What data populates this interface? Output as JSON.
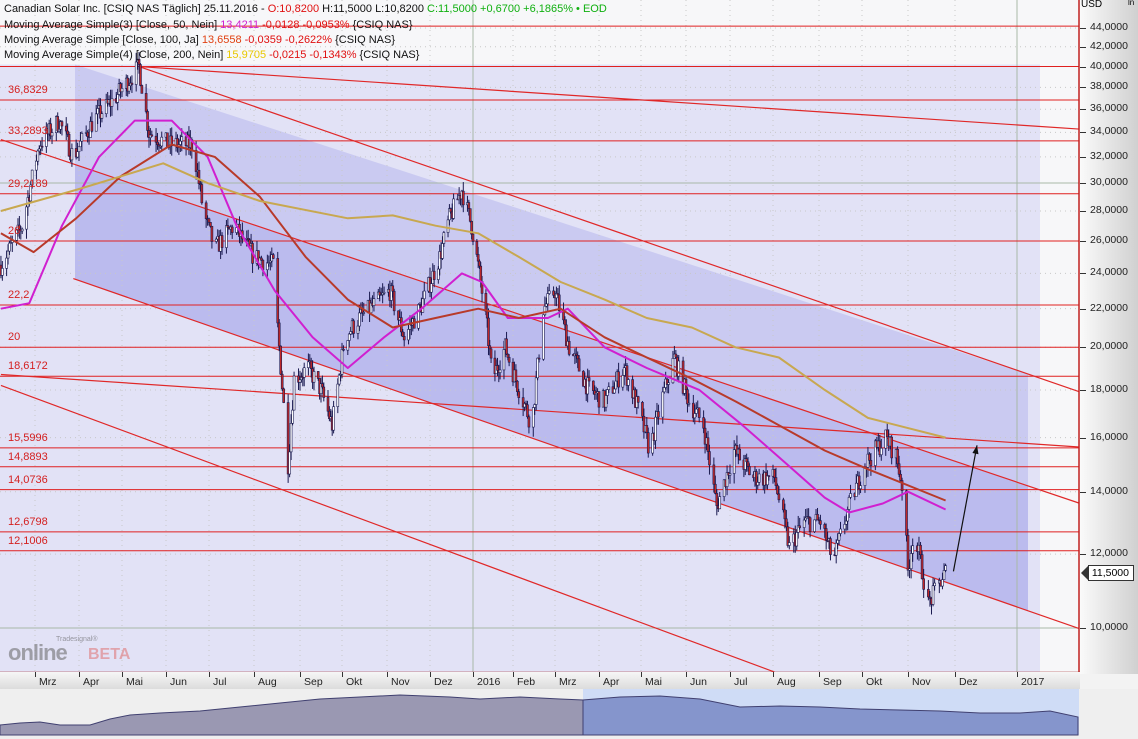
{
  "header": {
    "line1": {
      "name": "Canadian Solar Inc. [CSIQ NAS Täglich] 25.11.2016 -",
      "open": "O:10,8200",
      "hl": "H:11,5000 L:10,8200",
      "close": "C:11,5000 +0,6700 +6,1865% • EOD"
    },
    "line2": {
      "name": "Moving Average Simple(3) [Close, 50, Nein]",
      "value": "13,4211",
      "change": "-0,0128 -0,0953%",
      "suffix": "{CSIQ NAS}"
    },
    "line3": {
      "name": "Moving Average Simple [Close, 100, Ja]",
      "value": "13,6558",
      "change": "-0,0359 -0,2622%",
      "suffix": "{CSIQ NAS}"
    },
    "line4": {
      "name": "Moving Average Simple(4) [Close, 200, Nein]",
      "value": "15,9705",
      "change": "-0,0215 -0,1343%",
      "suffix": "{CSIQ NAS}"
    }
  },
  "colors": {
    "ma50": "#d020d0",
    "ma100": "#b83a2a",
    "ma200": "#c8a850",
    "levels": "#e02020",
    "header_open": "#e01010",
    "header_close": "#10b010",
    "ma200_value": "#e8c800"
  },
  "axis": {
    "currency": "USD",
    "scale_label": "ln",
    "last_price": "11,5000"
  },
  "logo": {
    "small": "Tradesignal®",
    "big": "online",
    "beta": "BETA"
  },
  "chart_data": {
    "type": "candlestick",
    "title": "Canadian Solar Inc. [CSIQ NAS Täglich]",
    "y_scale": "log",
    "ylim": [
      8.9,
      45
    ],
    "y_ticks": [
      "44,0000",
      "42,0000",
      "40,0000",
      "38,0000",
      "36,0000",
      "34,0000",
      "32,0000",
      "30,0000",
      "28,0000",
      "26,0000",
      "24,0000",
      "22,0000",
      "20,0000",
      "18,0000",
      "16,0000",
      "14,0000",
      "12,0000",
      "10,0000"
    ],
    "x_ticks": [
      {
        "date": "2015-03-01",
        "label": "Mrz"
      },
      {
        "date": "2015-04-01",
        "label": "Apr"
      },
      {
        "date": "2015-05-01",
        "label": "Mai"
      },
      {
        "date": "2015-06-01",
        "label": "Jun"
      },
      {
        "date": "2015-07-01",
        "label": "Jul"
      },
      {
        "date": "2015-08-01",
        "label": "Aug"
      },
      {
        "date": "2015-09-01",
        "label": "Sep"
      },
      {
        "date": "2015-10-01",
        "label": "Okt"
      },
      {
        "date": "2015-11-01",
        "label": "Nov"
      },
      {
        "date": "2015-12-01",
        "label": "Dez"
      },
      {
        "date": "2016-01-01",
        "label": "2016"
      },
      {
        "date": "2016-02-01",
        "label": "Feb"
      },
      {
        "date": "2016-03-01",
        "label": "Mrz"
      },
      {
        "date": "2016-04-01",
        "label": "Apr"
      },
      {
        "date": "2016-05-01",
        "label": "Mai"
      },
      {
        "date": "2016-06-01",
        "label": "Jun"
      },
      {
        "date": "2016-07-01",
        "label": "Jul"
      },
      {
        "date": "2016-08-01",
        "label": "Aug"
      },
      {
        "date": "2016-09-01",
        "label": "Sep"
      },
      {
        "date": "2016-10-01",
        "label": "Okt"
      },
      {
        "date": "2016-11-01",
        "label": "Nov"
      },
      {
        "date": "2016-12-01",
        "label": "Dez"
      },
      {
        "date": "2017-01-01",
        "label": "2017"
      }
    ],
    "price_path": [
      [
        "2015-02-05",
        24.5
      ],
      [
        "2015-02-20",
        27
      ],
      [
        "2015-03-04",
        33
      ],
      [
        "2015-03-18",
        35
      ],
      [
        "2015-03-28",
        32
      ],
      [
        "2015-04-11",
        35
      ],
      [
        "2015-04-26",
        37
      ],
      [
        "2015-05-13",
        40
      ],
      [
        "2015-05-20",
        34
      ],
      [
        "2015-06-03",
        33
      ],
      [
        "2015-06-20",
        33
      ],
      [
        "2015-06-27",
        28
      ],
      [
        "2015-07-05",
        25.5
      ],
      [
        "2015-07-18",
        27
      ],
      [
        "2015-08-01",
        25
      ],
      [
        "2015-08-15",
        24.5
      ],
      [
        "2015-08-17",
        21
      ],
      [
        "2015-08-24",
        15
      ],
      [
        "2015-08-28",
        18.5
      ],
      [
        "2015-09-07",
        19
      ],
      [
        "2015-09-16",
        18
      ],
      [
        "2015-09-24",
        16.5
      ],
      [
        "2015-10-03",
        20.5
      ],
      [
        "2015-10-13",
        21.5
      ],
      [
        "2015-11-03",
        23
      ],
      [
        "2015-11-13",
        20.5
      ],
      [
        "2015-11-24",
        22
      ],
      [
        "2015-12-08",
        25
      ],
      [
        "2015-12-15",
        27.5
      ],
      [
        "2015-12-24",
        29.5
      ],
      [
        "2015-12-31",
        27
      ],
      [
        "2016-01-06",
        24
      ],
      [
        "2016-01-12",
        21
      ],
      [
        "2016-01-16",
        18.5
      ],
      [
        "2016-01-26",
        20
      ],
      [
        "2016-02-14",
        16.5
      ],
      [
        "2016-02-22",
        22
      ],
      [
        "2016-03-01",
        23
      ],
      [
        "2016-03-11",
        20
      ],
      [
        "2016-03-25",
        18
      ],
      [
        "2016-04-05",
        17.5
      ],
      [
        "2016-04-19",
        19
      ],
      [
        "2016-04-30",
        17
      ],
      [
        "2016-05-07",
        15.5
      ],
      [
        "2016-05-15",
        17.5
      ],
      [
        "2016-05-24",
        19.5
      ],
      [
        "2016-06-03",
        17.5
      ],
      [
        "2016-06-13",
        16.5
      ],
      [
        "2016-06-22",
        13.5
      ],
      [
        "2016-07-04",
        15.5
      ],
      [
        "2016-07-18",
        14.5
      ],
      [
        "2016-08-02",
        14.5
      ],
      [
        "2016-08-12",
        12.2
      ],
      [
        "2016-08-22",
        13
      ],
      [
        "2016-09-02",
        13
      ],
      [
        "2016-09-11",
        11.8
      ],
      [
        "2016-09-22",
        13.5
      ],
      [
        "2016-10-03",
        15
      ],
      [
        "2016-10-17",
        16
      ],
      [
        "2016-10-24",
        15.3
      ],
      [
        "2016-10-29",
        14
      ],
      [
        "2016-11-01",
        11.5
      ],
      [
        "2016-11-04",
        12.5
      ],
      [
        "2016-11-08",
        12
      ],
      [
        "2016-11-14",
        10.6
      ],
      [
        "2016-11-25",
        11.5
      ]
    ],
    "last_bar": {
      "date": "25.11.2016",
      "open": 10.82,
      "high": 11.5,
      "low": 10.82,
      "close": 11.5
    },
    "series": [
      {
        "name": "Moving Average Simple(3) [Close, 50, Nein]",
        "color": "#d020d0",
        "points": [
          [
            "2015-02-05",
            22
          ],
          [
            "2015-02-25",
            22.3
          ],
          [
            "2015-03-20",
            27
          ],
          [
            "2015-04-15",
            32
          ],
          [
            "2015-05-10",
            35
          ],
          [
            "2015-06-05",
            35
          ],
          [
            "2015-06-30",
            32
          ],
          [
            "2015-07-20",
            27
          ],
          [
            "2015-08-15",
            23
          ],
          [
            "2015-09-10",
            20.5
          ],
          [
            "2015-10-05",
            19
          ],
          [
            "2015-10-30",
            20.5
          ],
          [
            "2015-11-25",
            22
          ],
          [
            "2015-12-24",
            24
          ],
          [
            "2016-01-08",
            23.5
          ],
          [
            "2016-01-28",
            21.5
          ],
          [
            "2016-02-25",
            21.5
          ],
          [
            "2016-03-10",
            22
          ],
          [
            "2016-04-05",
            20
          ],
          [
            "2016-05-05",
            19
          ],
          [
            "2016-06-10",
            18
          ],
          [
            "2016-07-10",
            16.5
          ],
          [
            "2016-08-10",
            15
          ],
          [
            "2016-09-05",
            13.8
          ],
          [
            "2016-09-22",
            13.3
          ],
          [
            "2016-10-15",
            13.6
          ],
          [
            "2016-11-01",
            14
          ],
          [
            "2016-11-25",
            13.4
          ]
        ]
      },
      {
        "name": "Moving Average Simple [Close, 100, Ja]",
        "color": "#b83a2a",
        "points": [
          [
            "2015-02-05",
            26.5
          ],
          [
            "2015-02-28",
            25.3
          ],
          [
            "2015-03-30",
            27.5
          ],
          [
            "2015-04-30",
            30.5
          ],
          [
            "2015-06-05",
            33
          ],
          [
            "2015-07-05",
            32
          ],
          [
            "2015-08-05",
            29
          ],
          [
            "2015-09-05",
            25
          ],
          [
            "2015-10-05",
            22.5
          ],
          [
            "2015-11-05",
            21
          ],
          [
            "2015-12-05",
            21.5
          ],
          [
            "2016-01-05",
            22
          ],
          [
            "2016-02-05",
            21.5
          ],
          [
            "2016-03-05",
            22
          ],
          [
            "2016-04-05",
            20.5
          ],
          [
            "2016-05-05",
            19.5
          ],
          [
            "2016-06-05",
            18.5
          ],
          [
            "2016-07-05",
            17.5
          ],
          [
            "2016-08-05",
            16.5
          ],
          [
            "2016-09-05",
            15.5
          ],
          [
            "2016-10-05",
            14.8
          ],
          [
            "2016-11-25",
            13.7
          ]
        ]
      },
      {
        "name": "Moving Average Simple(4) [Close, 200, Nein]",
        "color": "#c8a850",
        "points": [
          [
            "2015-02-05",
            28
          ],
          [
            "2015-03-30",
            29.5
          ],
          [
            "2015-04-30",
            30.5
          ],
          [
            "2015-05-30",
            31.5
          ],
          [
            "2015-06-30",
            30
          ],
          [
            "2015-08-05",
            28.7
          ],
          [
            "2015-10-05",
            27.5
          ],
          [
            "2015-11-05",
            27.7
          ],
          [
            "2015-12-05",
            27
          ],
          [
            "2016-01-05",
            26.5
          ],
          [
            "2016-02-05",
            25
          ],
          [
            "2016-03-05",
            23.5
          ],
          [
            "2016-04-05",
            22.5
          ],
          [
            "2016-05-05",
            21.5
          ],
          [
            "2016-06-05",
            21
          ],
          [
            "2016-07-05",
            20
          ],
          [
            "2016-08-05",
            19.5
          ],
          [
            "2016-09-05",
            18
          ],
          [
            "2016-10-05",
            16.8
          ],
          [
            "2016-11-25",
            16
          ]
        ]
      }
    ],
    "levels": [
      {
        "value": 44.2,
        "label": ""
      },
      {
        "value": 40,
        "label": ""
      },
      {
        "value": 36.8329,
        "label": "36,8329"
      },
      {
        "value": 33.2893,
        "label": "33,2893"
      },
      {
        "value": 29.2189,
        "label": "29,2189"
      },
      {
        "value": 26,
        "label": "26"
      },
      {
        "value": 22.2,
        "label": "22,2"
      },
      {
        "value": 20,
        "label": "20"
      },
      {
        "value": 18.6172,
        "label": "18,6172"
      },
      {
        "value": 15.5996,
        "label": "15,5996"
      },
      {
        "value": 14.8893,
        "label": "14,8893"
      },
      {
        "value": 14.0736,
        "label": "14,0736"
      },
      {
        "value": 12.6798,
        "label": "12,6798"
      },
      {
        "value": 12.1006,
        "label": "12,1006"
      }
    ],
    "trendlines": [
      {
        "from": [
          "2015-05-13",
          40
        ],
        "to": [
          "2017-02-15",
          17.5
        ]
      },
      {
        "from": [
          "2015-05-13",
          40
        ],
        "to": [
          "2017-02-08",
          34.2
        ]
      },
      {
        "from": [
          "2015-02-05",
          33.4
        ],
        "to": [
          "2017-02-15",
          13.3
        ]
      },
      {
        "from": [
          "2015-02-05",
          18.7
        ],
        "to": [
          "2017-02-08",
          15.6
        ]
      },
      {
        "from": [
          "2015-03-28",
          23.7
        ],
        "to": [
          "2017-02-15",
          9.75
        ]
      },
      {
        "from": [
          "2015-02-05",
          18.2
        ],
        "to": [
          "2016-08-02",
          8.97
        ]
      }
    ],
    "arrow": {
      "from": [
        "2016-11-30",
        11.5
      ],
      "to": [
        "2016-12-12",
        15.7
      ]
    },
    "grid": true,
    "legend": "top-left"
  }
}
